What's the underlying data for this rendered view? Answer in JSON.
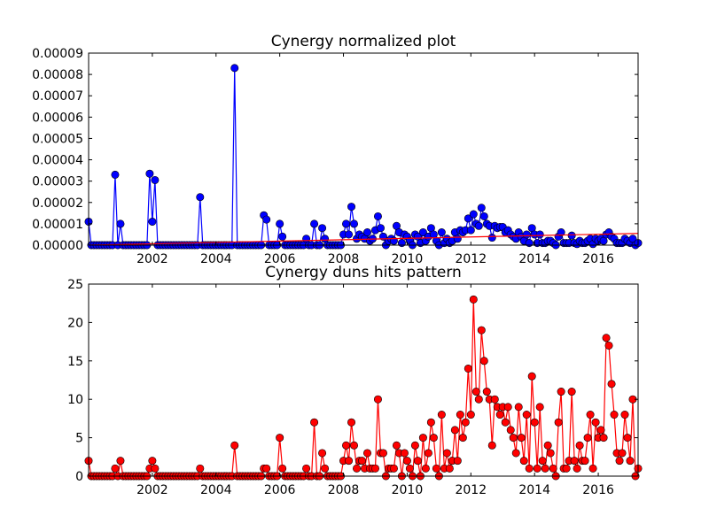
{
  "chart_data": [
    {
      "type": "line",
      "title": "Cynergy normalized plot",
      "x": [
        2000,
        2000.083,
        2000.167,
        2000.25,
        2000.333,
        2000.417,
        2000.5,
        2000.583,
        2000.667,
        2000.75,
        2000.833,
        2000.917,
        2001,
        2001.083,
        2001.167,
        2001.25,
        2001.333,
        2001.417,
        2001.5,
        2001.583,
        2001.667,
        2001.75,
        2001.833,
        2001.917,
        2002,
        2002.083,
        2002.167,
        2002.25,
        2002.333,
        2002.417,
        2002.5,
        2002.583,
        2002.667,
        2002.75,
        2002.833,
        2002.917,
        2003,
        2003.083,
        2003.167,
        2003.25,
        2003.333,
        2003.417,
        2003.5,
        2003.583,
        2003.667,
        2003.75,
        2003.833,
        2003.917,
        2004,
        2004.083,
        2004.167,
        2004.25,
        2004.333,
        2004.417,
        2004.5,
        2004.583,
        2004.667,
        2004.75,
        2004.833,
        2004.917,
        2005,
        2005.083,
        2005.167,
        2005.25,
        2005.333,
        2005.417,
        2005.5,
        2005.583,
        2005.667,
        2005.75,
        2005.833,
        2005.917,
        2006,
        2006.083,
        2006.167,
        2006.25,
        2006.333,
        2006.417,
        2006.5,
        2006.583,
        2006.667,
        2006.75,
        2006.833,
        2006.917,
        2007,
        2007.083,
        2007.167,
        2007.25,
        2007.333,
        2007.417,
        2007.5,
        2007.583,
        2007.667,
        2007.75,
        2007.833,
        2007.917,
        2008,
        2008.083,
        2008.167,
        2008.25,
        2008.333,
        2008.417,
        2008.5,
        2008.583,
        2008.667,
        2008.75,
        2008.833,
        2008.917,
        2009,
        2009.083,
        2009.167,
        2009.25,
        2009.333,
        2009.417,
        2009.5,
        2009.583,
        2009.667,
        2009.75,
        2009.833,
        2009.917,
        2010,
        2010.083,
        2010.167,
        2010.25,
        2010.333,
        2010.417,
        2010.5,
        2010.583,
        2010.667,
        2010.75,
        2010.833,
        2010.917,
        2011,
        2011.083,
        2011.167,
        2011.25,
        2011.333,
        2011.417,
        2011.5,
        2011.583,
        2011.667,
        2011.75,
        2011.833,
        2011.917,
        2012,
        2012.083,
        2012.167,
        2012.25,
        2012.333,
        2012.417,
        2012.5,
        2012.583,
        2012.667,
        2012.75,
        2012.833,
        2012.917,
        2013,
        2013.083,
        2013.167,
        2013.25,
        2013.333,
        2013.417,
        2013.5,
        2013.583,
        2013.667,
        2013.75,
        2013.833,
        2013.917,
        2014,
        2014.083,
        2014.167,
        2014.25,
        2014.333,
        2014.417,
        2014.5,
        2014.583,
        2014.667,
        2014.75,
        2014.833,
        2014.917,
        2015,
        2015.083,
        2015.167,
        2015.25,
        2015.333,
        2015.417,
        2015.5,
        2015.583,
        2015.667,
        2015.75,
        2015.833,
        2015.917,
        2016,
        2016.083,
        2016.167,
        2016.25,
        2016.333,
        2016.417,
        2016.5,
        2016.583,
        2016.667,
        2016.75,
        2016.833,
        2016.917,
        2017,
        2017.083,
        2017.167,
        2017.25
      ],
      "series": [
        {
          "color": "#0000ff",
          "marker": true,
          "values": [
            1.1e-05,
            0,
            0,
            0,
            0,
            0,
            0,
            0,
            0,
            0,
            3.3e-05,
            0,
            1e-05,
            0,
            0,
            0,
            0,
            0,
            0,
            0,
            0,
            0,
            0,
            3.35e-05,
            1.1e-05,
            3.05e-05,
            0,
            0,
            0,
            0,
            0,
            0,
            0,
            0,
            0,
            0,
            0,
            0,
            0,
            0,
            0,
            0,
            2.25e-05,
            0,
            0,
            0,
            0,
            0,
            0,
            0,
            0,
            0,
            0,
            0,
            0,
            8.3e-05,
            0,
            0,
            0,
            0,
            0,
            0,
            0,
            0,
            0,
            0,
            1.4e-05,
            1.2e-05,
            0,
            0,
            0,
            0,
            1e-05,
            4e-06,
            0,
            0,
            0,
            0,
            0,
            0,
            0,
            0,
            3e-06,
            0,
            0,
            1e-05,
            0,
            0,
            8e-06,
            3e-06,
            0,
            0,
            0,
            0,
            0,
            0,
            5e-06,
            1e-05,
            5e-06,
            1.8e-05,
            1e-05,
            3e-06,
            5e-06,
            4e-06,
            3e-06,
            6e-06,
            2e-06,
            3e-06,
            7e-06,
            1.35e-05,
            8e-06,
            4e-06,
            0,
            2e-06,
            3e-06,
            2e-06,
            9e-06,
            6e-06,
            1e-06,
            5e-06,
            4e-06,
            2e-06,
            0,
            5e-06,
            4e-06,
            1e-06,
            6e-06,
            2e-06,
            4e-06,
            8e-06,
            5e-06,
            2e-06,
            0,
            6e-06,
            1e-06,
            3e-06,
            1e-06,
            2e-06,
            6e-06,
            3e-06,
            7e-06,
            6e-06,
            7e-06,
            1.25e-05,
            7e-06,
            1.45e-05,
            1e-05,
            9e-06,
            1.75e-05,
            1.35e-05,
            1e-05,
            9e-06,
            3.5e-06,
            9e-06,
            8e-06,
            8.5e-06,
            8.5e-06,
            6e-06,
            7e-06,
            5e-06,
            4e-06,
            3e-06,
            6e-06,
            4e-06,
            2e-06,
            5e-06,
            1e-06,
            8e-06,
            5e-06,
            1e-06,
            5e-06,
            1e-06,
            1e-06,
            2e-06,
            2e-06,
            1e-06,
            0,
            4e-06,
            6e-06,
            1e-06,
            1e-06,
            1e-06,
            4.5e-06,
            1e-06,
            5e-07,
            2e-06,
            1e-06,
            1e-06,
            2e-06,
            3e-06,
            5e-07,
            3e-06,
            2e-06,
            3e-06,
            2e-06,
            5e-06,
            6e-06,
            4e-06,
            3e-06,
            1e-06,
            1e-06,
            1e-06,
            3e-06,
            2e-06,
            1e-06,
            3e-06,
            0,
            1e-06
          ]
        },
        {
          "color": "#ff0000",
          "marker": false,
          "x": [
            2000,
            2017.25
          ],
          "values": [
            0,
            5.5e-06
          ]
        }
      ],
      "xlim": [
        2000,
        2017.25
      ],
      "xticks": [
        2002,
        2004,
        2006,
        2008,
        2010,
        2012,
        2014,
        2016
      ],
      "ylim": [
        0,
        9e-05
      ],
      "yticks": [
        {
          "value": 0,
          "label": "0.00000"
        },
        {
          "value": 1e-05,
          "label": "0.00001"
        },
        {
          "value": 2e-05,
          "label": "0.00002"
        },
        {
          "value": 3e-05,
          "label": "0.00003"
        },
        {
          "value": 4e-05,
          "label": "0.00004"
        },
        {
          "value": 5e-05,
          "label": "0.00005"
        },
        {
          "value": 6e-05,
          "label": "0.00006"
        },
        {
          "value": 7e-05,
          "label": "0.00007"
        },
        {
          "value": 8e-05,
          "label": "0.00008"
        },
        {
          "value": 9e-05,
          "label": "0.00009"
        }
      ]
    },
    {
      "type": "line",
      "title": "Cynergy duns hits pattern",
      "x": [
        2000,
        2000.083,
        2000.167,
        2000.25,
        2000.333,
        2000.417,
        2000.5,
        2000.583,
        2000.667,
        2000.75,
        2000.833,
        2000.917,
        2001,
        2001.083,
        2001.167,
        2001.25,
        2001.333,
        2001.417,
        2001.5,
        2001.583,
        2001.667,
        2001.75,
        2001.833,
        2001.917,
        2002,
        2002.083,
        2002.167,
        2002.25,
        2002.333,
        2002.417,
        2002.5,
        2002.583,
        2002.667,
        2002.75,
        2002.833,
        2002.917,
        2003,
        2003.083,
        2003.167,
        2003.25,
        2003.333,
        2003.417,
        2003.5,
        2003.583,
        2003.667,
        2003.75,
        2003.833,
        2003.917,
        2004,
        2004.083,
        2004.167,
        2004.25,
        2004.333,
        2004.417,
        2004.5,
        2004.583,
        2004.667,
        2004.75,
        2004.833,
        2004.917,
        2005,
        2005.083,
        2005.167,
        2005.25,
        2005.333,
        2005.417,
        2005.5,
        2005.583,
        2005.667,
        2005.75,
        2005.833,
        2005.917,
        2006,
        2006.083,
        2006.167,
        2006.25,
        2006.333,
        2006.417,
        2006.5,
        2006.583,
        2006.667,
        2006.75,
        2006.833,
        2006.917,
        2007,
        2007.083,
        2007.167,
        2007.25,
        2007.333,
        2007.417,
        2007.5,
        2007.583,
        2007.667,
        2007.75,
        2007.833,
        2007.917,
        2008,
        2008.083,
        2008.167,
        2008.25,
        2008.333,
        2008.417,
        2008.5,
        2008.583,
        2008.667,
        2008.75,
        2008.833,
        2008.917,
        2009,
        2009.083,
        2009.167,
        2009.25,
        2009.333,
        2009.417,
        2009.5,
        2009.583,
        2009.667,
        2009.75,
        2009.833,
        2009.917,
        2010,
        2010.083,
        2010.167,
        2010.25,
        2010.333,
        2010.417,
        2010.5,
        2010.583,
        2010.667,
        2010.75,
        2010.833,
        2010.917,
        2011,
        2011.083,
        2011.167,
        2011.25,
        2011.333,
        2011.417,
        2011.5,
        2011.583,
        2011.667,
        2011.75,
        2011.833,
        2011.917,
        2012,
        2012.083,
        2012.167,
        2012.25,
        2012.333,
        2012.417,
        2012.5,
        2012.583,
        2012.667,
        2012.75,
        2012.833,
        2012.917,
        2013,
        2013.083,
        2013.167,
        2013.25,
        2013.333,
        2013.417,
        2013.5,
        2013.583,
        2013.667,
        2013.75,
        2013.833,
        2013.917,
        2014,
        2014.083,
        2014.167,
        2014.25,
        2014.333,
        2014.417,
        2014.5,
        2014.583,
        2014.667,
        2014.75,
        2014.833,
        2014.917,
        2015,
        2015.083,
        2015.167,
        2015.25,
        2015.333,
        2015.417,
        2015.5,
        2015.583,
        2015.667,
        2015.75,
        2015.833,
        2015.917,
        2016,
        2016.083,
        2016.167,
        2016.25,
        2016.333,
        2016.417,
        2016.5,
        2016.583,
        2016.667,
        2016.75,
        2016.833,
        2016.917,
        2017,
        2017.083,
        2017.167,
        2017.25
      ],
      "series": [
        {
          "color": "#ff0000",
          "marker": true,
          "values": [
            2,
            0,
            0,
            0,
            0,
            0,
            0,
            0,
            0,
            0,
            1,
            0,
            2,
            0,
            0,
            0,
            0,
            0,
            0,
            0,
            0,
            0,
            0,
            1,
            2,
            1,
            0,
            0,
            0,
            0,
            0,
            0,
            0,
            0,
            0,
            0,
            0,
            0,
            0,
            0,
            0,
            0,
            1,
            0,
            0,
            0,
            0,
            0,
            0,
            0,
            0,
            0,
            0,
            0,
            0,
            4,
            0,
            0,
            0,
            0,
            0,
            0,
            0,
            0,
            0,
            0,
            1,
            1,
            0,
            0,
            0,
            0,
            5,
            1,
            0,
            0,
            0,
            0,
            0,
            0,
            0,
            0,
            1,
            0,
            0,
            7,
            0,
            0,
            3,
            1,
            0,
            0,
            0,
            0,
            0,
            0,
            2,
            4,
            2,
            7,
            4,
            1,
            2,
            2,
            1,
            3,
            1,
            1,
            1,
            10,
            3,
            3,
            0,
            1,
            1,
            1,
            4,
            3,
            0,
            3,
            2,
            1,
            0,
            4,
            2,
            0,
            5,
            1,
            3,
            7,
            5,
            1,
            0,
            8,
            1,
            3,
            1,
            2,
            6,
            2,
            8,
            5,
            7,
            14,
            8,
            23,
            11,
            10,
            19,
            15,
            11,
            10,
            4,
            10,
            9,
            8,
            9,
            7,
            9,
            6,
            5,
            3,
            9,
            5,
            2,
            8,
            1,
            13,
            7,
            1,
            9,
            2,
            1,
            4,
            3,
            1,
            0,
            7,
            11,
            1,
            1,
            2,
            11,
            2,
            1,
            4,
            2,
            2,
            5,
            8,
            1,
            7,
            5,
            6,
            5,
            18,
            17,
            12,
            8,
            3,
            2,
            3,
            8,
            5,
            2,
            10,
            0,
            1
          ]
        }
      ],
      "xlim": [
        2000,
        2017.25
      ],
      "xticks": [
        2002,
        2004,
        2006,
        2008,
        2010,
        2012,
        2014,
        2016
      ],
      "ylim": [
        0,
        25
      ],
      "yticks": [
        0,
        5,
        10,
        15,
        20,
        25
      ]
    }
  ]
}
